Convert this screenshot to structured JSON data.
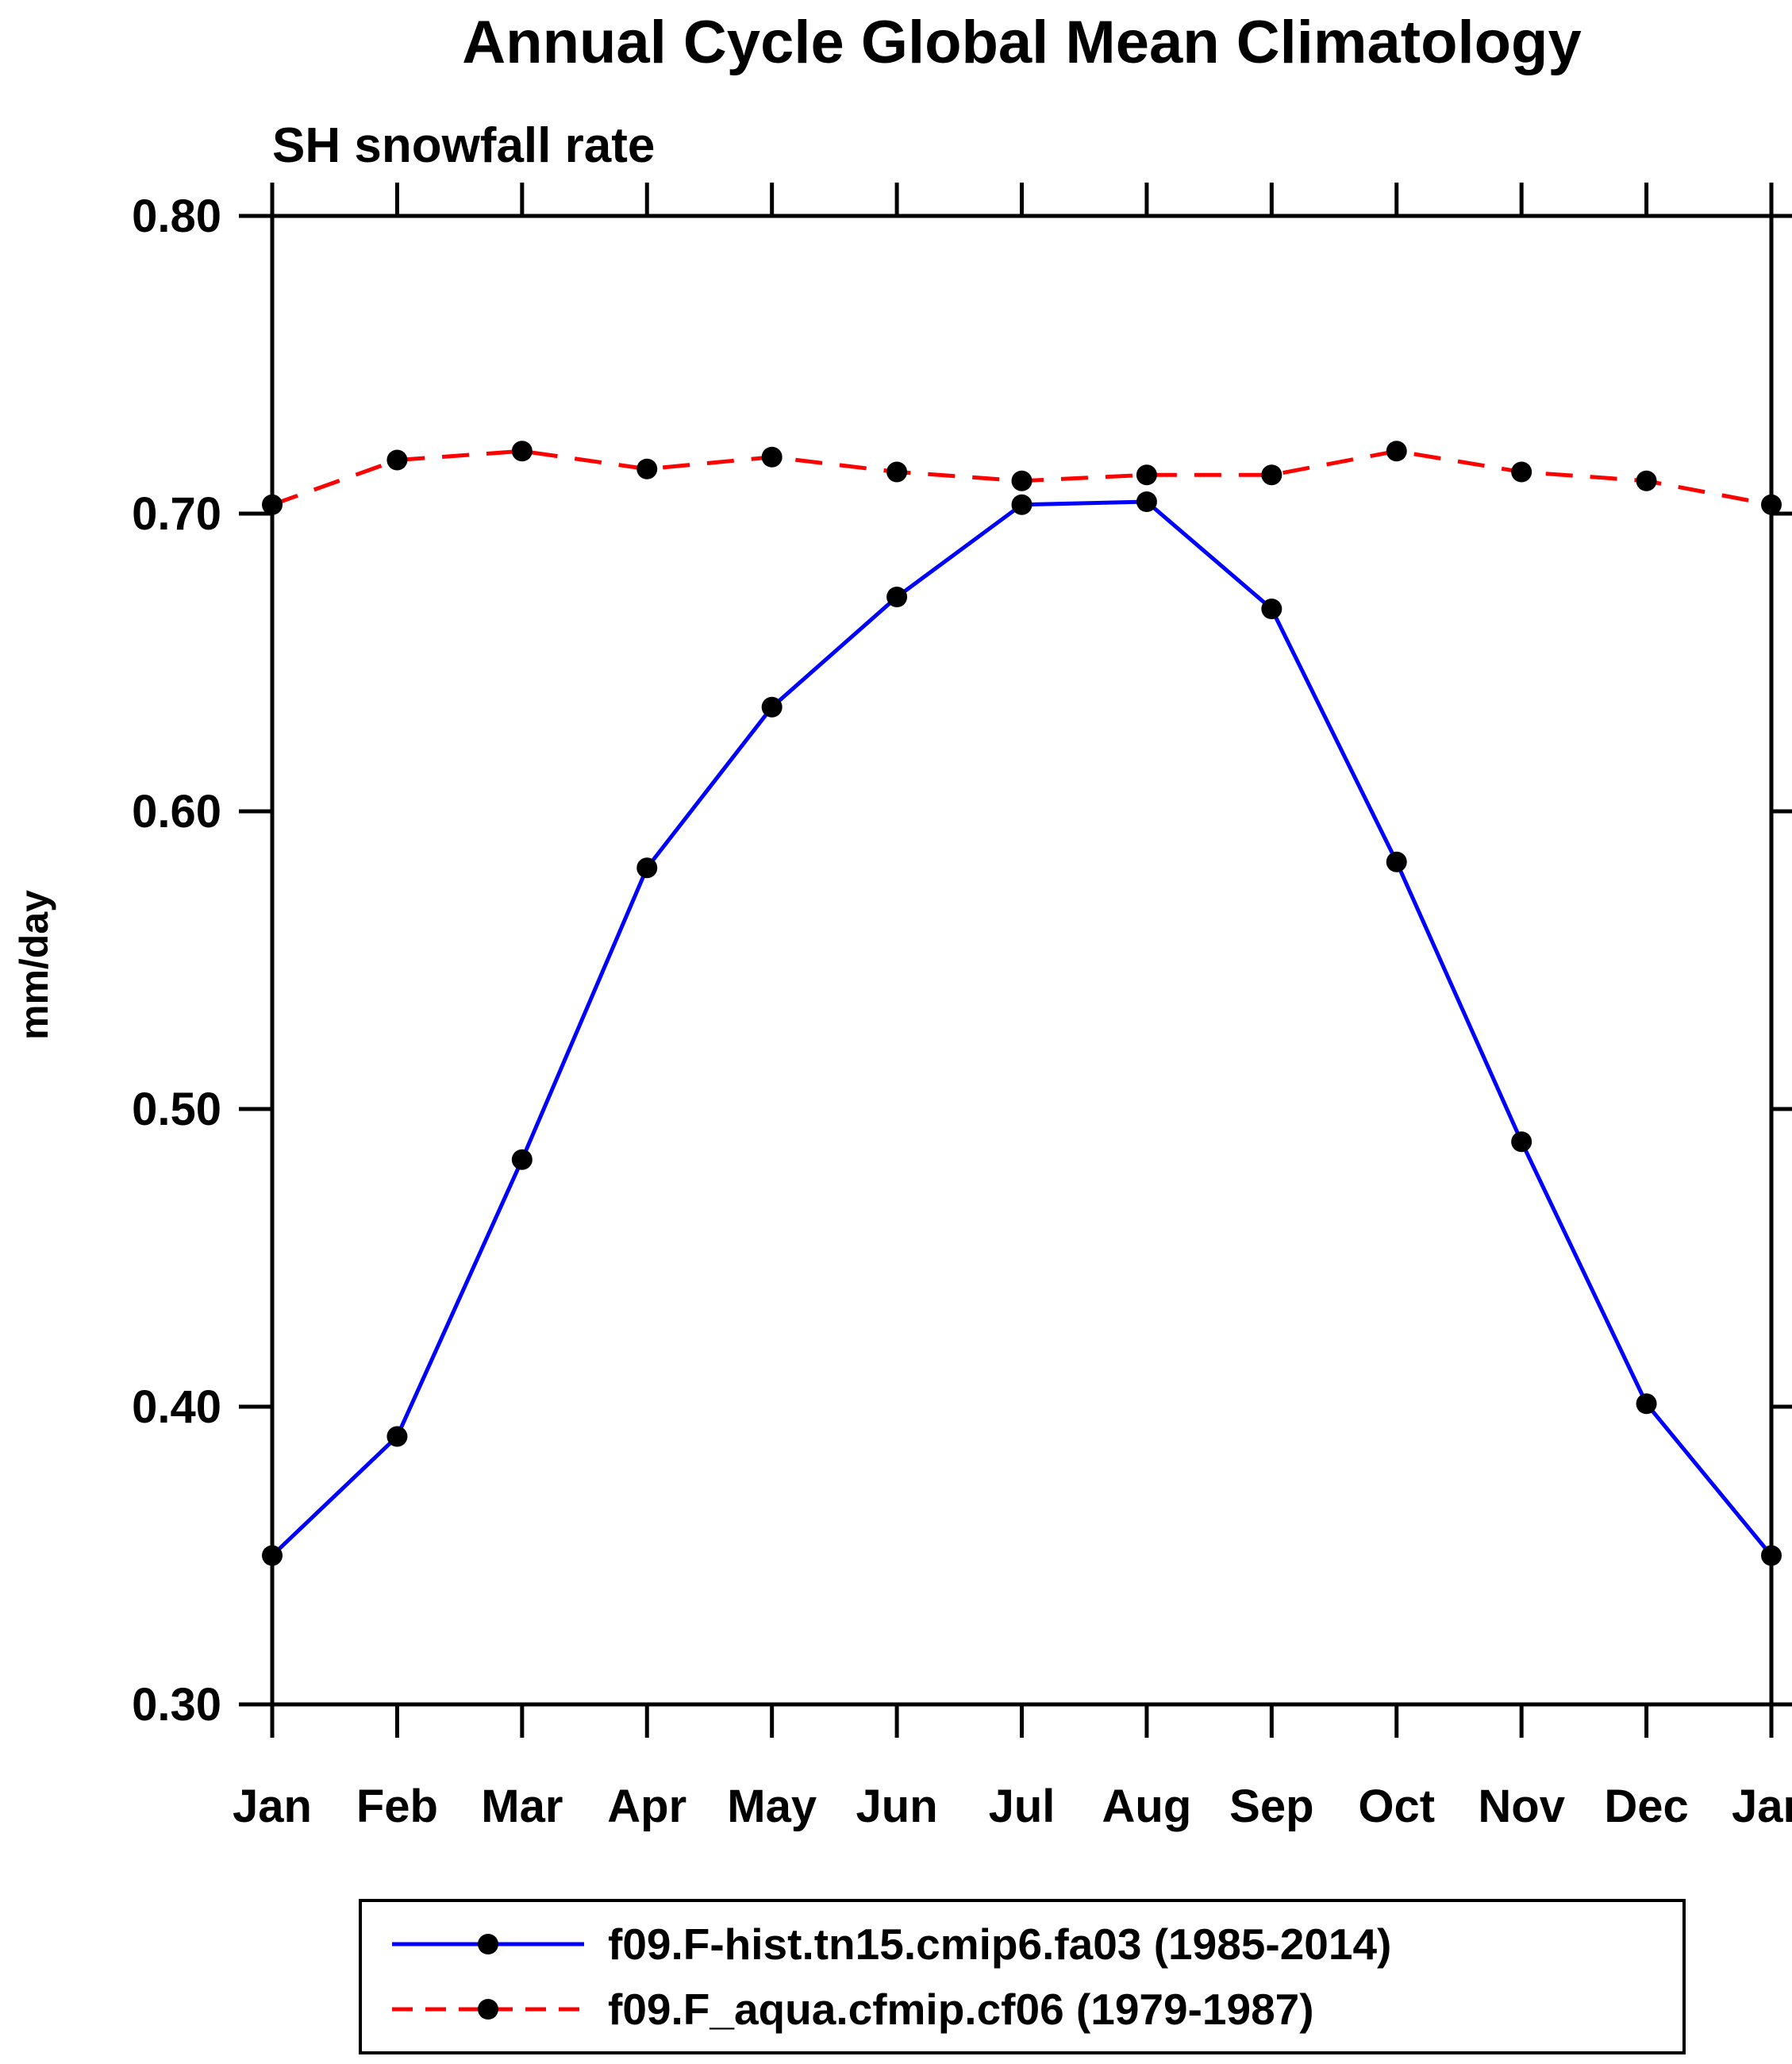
{
  "chart_data": {
    "type": "line",
    "title": "Annual Cycle Global Mean Climatology",
    "subtitle": "SH snowfall rate",
    "ylabel": "mm/day",
    "xlabel": "",
    "ylim": [
      0.3,
      0.8
    ],
    "yticks": [
      0.3,
      0.4,
      0.5,
      0.6,
      0.7,
      0.8
    ],
    "grid": false,
    "legend_position": "bottom",
    "categories": [
      "Jan",
      "Feb",
      "Mar",
      "Apr",
      "May",
      "Jun",
      "Jul",
      "Aug",
      "Sep",
      "Oct",
      "Nov",
      "Dec",
      "Jan"
    ],
    "series": [
      {
        "name": "f09.F-hist.tn15.cmip6.fa03 (1985-2014)",
        "color": "#0000ff",
        "style": "solid",
        "marker": "black-dot",
        "values": [
          0.35,
          0.39,
          0.483,
          0.581,
          0.635,
          0.672,
          0.703,
          0.704,
          0.668,
          0.583,
          0.489,
          0.401,
          0.35
        ]
      },
      {
        "name": "f09.F_aqua.cfmip.cf06 (1979-1987)",
        "color": "#ff0000",
        "style": "dashed",
        "marker": "black-dot",
        "values": [
          0.703,
          0.718,
          0.721,
          0.715,
          0.719,
          0.714,
          0.711,
          0.713,
          0.713,
          0.721,
          0.714,
          0.711,
          0.703
        ]
      }
    ]
  }
}
